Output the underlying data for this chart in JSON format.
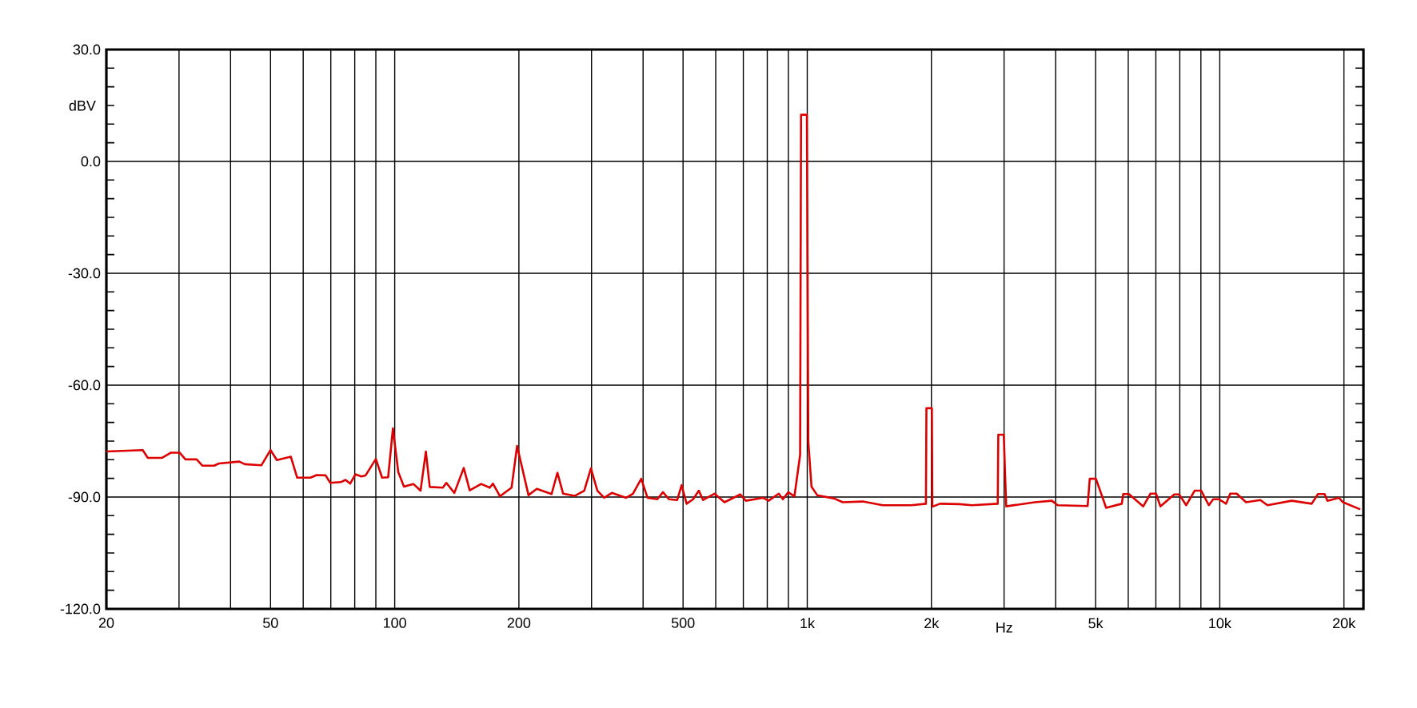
{
  "chart_data": {
    "type": "line",
    "xlabel": "Hz",
    "ylabel": "dBV",
    "log": "x",
    "grid": true,
    "marker": "none",
    "xlim": [
      20,
      22300
    ],
    "ylim": [
      -120,
      30
    ],
    "xticks": [
      20,
      {
        "value": 30,
        "label": null
      },
      {
        "value": 40,
        "label": null
      },
      50,
      {
        "value": 60,
        "label": null
      },
      {
        "value": 70,
        "label": null
      },
      {
        "value": 80,
        "label": null
      },
      {
        "value": 90,
        "label": null
      },
      100,
      200,
      {
        "value": 300,
        "label": null
      },
      {
        "value": 400,
        "label": null
      },
      500,
      {
        "value": 600,
        "label": null
      },
      {
        "value": 700,
        "label": null
      },
      {
        "value": 800,
        "label": null
      },
      {
        "value": 900,
        "label": null
      },
      {
        "value": 1000,
        "label": "1k"
      },
      {
        "value": 2000,
        "label": "2k"
      },
      {
        "value": 3000,
        "label": null
      },
      {
        "value": 4000,
        "label": null
      },
      {
        "value": 5000,
        "label": "5k"
      },
      {
        "value": 6000,
        "label": null
      },
      {
        "value": 7000,
        "label": null
      },
      {
        "value": 8000,
        "label": null
      },
      {
        "value": 9000,
        "label": null
      },
      {
        "value": 10000,
        "label": "10k"
      },
      {
        "value": 20000,
        "label": "20k"
      }
    ],
    "yticks": [
      {
        "value": -120,
        "label": "-120.0"
      },
      {
        "value": -90,
        "label": "-90.0"
      },
      {
        "value": -60,
        "label": "-60.0"
      },
      {
        "value": -30,
        "label": "-30.0"
      },
      {
        "value": 0,
        "label": "0.0"
      },
      {
        "value": 30,
        "label": "30.0"
      }
    ],
    "series": [
      {
        "color": "#dd0000",
        "x": [
          20,
          24.5,
          25.2,
          27.3,
          28.7,
          30.1,
          31.1,
          33.1,
          34.2,
          36.5,
          37.5,
          42,
          43.3,
          47.5,
          50,
          51.8,
          56,
          58,
          62.5,
          64.7,
          68,
          69.8,
          74,
          76,
          78,
          80.3,
          83,
          85,
          90,
          93.2,
          96.4,
          99,
          102,
          105.3,
          111,
          115.5,
          119,
          121.6,
          130.8,
          133.4,
          139.5,
          147,
          152,
          162,
          170,
          173,
          180,
          192,
          198,
          211,
          221,
          240,
          248,
          256,
          273,
          288,
          299,
          310,
          322,
          336,
          364,
          378,
          396,
          410,
          433,
          447,
          462,
          484,
          496,
          510,
          529,
          546,
          559,
          596,
          630,
          688,
          710,
          781,
          806,
          853,
          873,
          899,
          931,
          961,
          966,
          998,
          1006,
          1024,
          1057,
          1163,
          1219,
          1363,
          1524,
          1789,
          1940,
          1945,
          2005,
          2010,
          2097,
          2339,
          2507,
          2896,
          2905,
          2995,
          3036,
          3562,
          3918,
          4046,
          4783,
          4840,
          5010,
          5303,
          5788,
          5835,
          6022,
          6524,
          6790,
          7007,
          7179,
          7756,
          7977,
          8290,
          8692,
          9016,
          9408,
          9640,
          9955,
          10360,
          10600,
          10990,
          11580,
          12540,
          13050,
          14940,
          16710,
          17300,
          17950,
          18240,
          19440,
          19900,
          21900
        ],
        "values": [
          -77.8,
          -77.4,
          -79.5,
          -79.5,
          -78.1,
          -78.1,
          -79.9,
          -79.9,
          -81.6,
          -81.6,
          -81.0,
          -80.5,
          -81.2,
          -81.5,
          -77.4,
          -80.1,
          -79.2,
          -84.8,
          -84.8,
          -84.1,
          -84.2,
          -86.2,
          -86.0,
          -85.4,
          -86.4,
          -83.9,
          -84.5,
          -84.2,
          -79.8,
          -84.8,
          -84.7,
          -71.6,
          -83.3,
          -87.2,
          -86.5,
          -88.3,
          -77.8,
          -87.3,
          -87.5,
          -86.2,
          -88.9,
          -82.2,
          -88.2,
          -86.5,
          -87.5,
          -86.4,
          -89.8,
          -87.5,
          -76.3,
          -89.5,
          -87.8,
          -89.2,
          -83.5,
          -89.1,
          -89.7,
          -88.3,
          -82.3,
          -88.3,
          -90.2,
          -88.9,
          -90.2,
          -89.1,
          -85.1,
          -90.2,
          -90.6,
          -88.7,
          -90.6,
          -90.8,
          -86.8,
          -91.8,
          -90.6,
          -88.3,
          -90.8,
          -89.1,
          -91.4,
          -89.3,
          -91.0,
          -90.2,
          -91.0,
          -89.1,
          -90.6,
          -88.7,
          -89.8,
          -78.7,
          12.5,
          12.5,
          -75.2,
          -87.2,
          -89.5,
          -90.4,
          -91.4,
          -91.2,
          -92.2,
          -92.2,
          -91.8,
          -66.2,
          -66.2,
          -92.6,
          -91.8,
          -91.9,
          -92.2,
          -91.8,
          -73.3,
          -73.3,
          -92.5,
          -91.4,
          -91.0,
          -92.2,
          -92.4,
          -85.1,
          -85.1,
          -92.9,
          -91.8,
          -89.2,
          -89.2,
          -92.5,
          -89.1,
          -89.1,
          -92.5,
          -89.3,
          -89.3,
          -92.2,
          -88.3,
          -88.3,
          -92.2,
          -90.6,
          -90.6,
          -91.8,
          -89.1,
          -89.1,
          -91.4,
          -90.8,
          -92.2,
          -91.0,
          -91.8,
          -89.2,
          -89.2,
          -91.0,
          -90.2,
          -91.4,
          -93.3
        ]
      }
    ]
  }
}
